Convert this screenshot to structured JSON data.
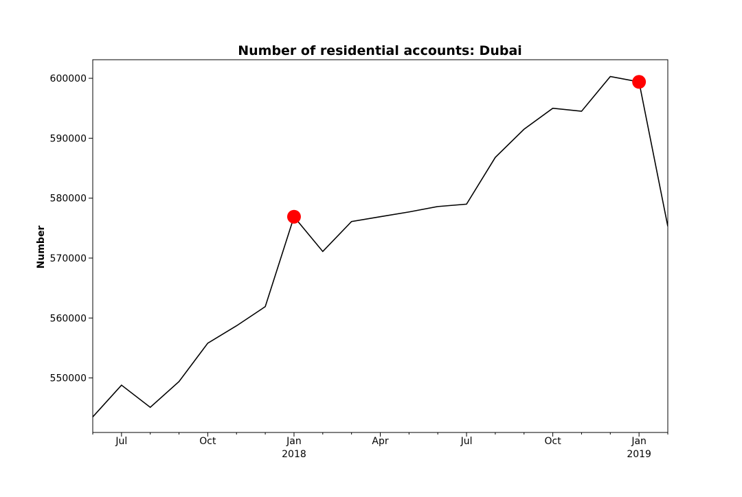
{
  "chart_data": {
    "type": "line",
    "title": "Number of residential accounts: Dubai",
    "xlabel": "",
    "ylabel": "Number",
    "x": [
      "2017-06",
      "2017-07",
      "2017-08",
      "2017-09",
      "2017-10",
      "2017-11",
      "2017-12",
      "2018-01",
      "2018-02",
      "2018-03",
      "2018-04",
      "2018-05",
      "2018-06",
      "2018-07",
      "2018-08",
      "2018-09",
      "2018-10",
      "2018-11",
      "2018-12",
      "2019-01",
      "2019-02"
    ],
    "series": [
      {
        "values": [
          543500,
          548800,
          545100,
          549400,
          555800,
          558700,
          561900,
          576900,
          571100,
          576100,
          576900,
          577700,
          578600,
          579000,
          586800,
          591500,
          595000,
          594500,
          600300,
          599400,
          575300
        ]
      }
    ],
    "highlighted_points": [
      {
        "x": "2018-01",
        "y": 576900
      },
      {
        "x": "2019-01",
        "y": 599400
      }
    ],
    "highlight_color": "#ff0000",
    "line_color": "#000000",
    "xlim": [
      "2017-06",
      "2019-02"
    ],
    "ylim": [
      540900,
      603100
    ],
    "y_ticks": [
      550000,
      560000,
      570000,
      580000,
      590000,
      600000
    ],
    "y_tick_labels": [
      "550000",
      "560000",
      "570000",
      "580000",
      "590000",
      "600000"
    ],
    "x_major_ticks": [
      {
        "x": "2017-07",
        "label": "Jul",
        "sublabel": ""
      },
      {
        "x": "2017-10",
        "label": "Oct",
        "sublabel": ""
      },
      {
        "x": "2018-01",
        "label": "Jan",
        "sublabel": "2018"
      },
      {
        "x": "2018-04",
        "label": "Apr",
        "sublabel": ""
      },
      {
        "x": "2018-07",
        "label": "Jul",
        "sublabel": ""
      },
      {
        "x": "2018-10",
        "label": "Oct",
        "sublabel": ""
      },
      {
        "x": "2019-01",
        "label": "Jan",
        "sublabel": "2019"
      }
    ],
    "x_minor_ticks": [
      "2017-06",
      "2017-08",
      "2017-09",
      "2017-11",
      "2017-12",
      "2018-02",
      "2018-03",
      "2018-05",
      "2018-06",
      "2018-08",
      "2018-09",
      "2018-11",
      "2018-12",
      "2019-02"
    ],
    "grid": false
  }
}
